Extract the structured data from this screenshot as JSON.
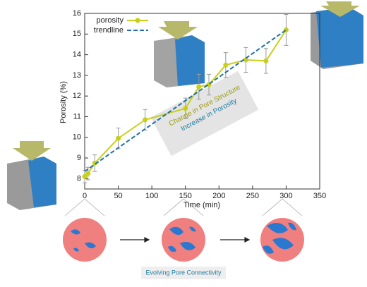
{
  "chart_data": {
    "type": "line",
    "x_label": "Time (min)",
    "y_label": "Porosity (%)",
    "xlim": [
      0,
      350
    ],
    "xticks": [
      0,
      50,
      100,
      150,
      200,
      250,
      300,
      350
    ],
    "ylim": [
      7.5,
      16
    ],
    "yticks": [
      8,
      9,
      10,
      11,
      12,
      13,
      14,
      15,
      16
    ],
    "legend": "top-left",
    "series": [
      {
        "name": "porosity",
        "color": "#c8cf1a",
        "style": "solid-markers",
        "x": [
          0,
          5,
          15,
          50,
          90,
          150,
          170,
          185,
          210,
          240,
          270,
          300
        ],
        "values": [
          8.1,
          8.25,
          8.75,
          9.95,
          10.85,
          11.4,
          12.45,
          12.55,
          13.5,
          13.75,
          13.7,
          15.2
        ],
        "errors": [
          0.3,
          0.3,
          0.4,
          0.5,
          0.5,
          0.5,
          0.6,
          0.5,
          0.6,
          0.6,
          0.6,
          0.75
        ]
      },
      {
        "name": "trendline",
        "color": "#1f6fa8",
        "style": "dashed",
        "x": [
          0,
          300
        ],
        "values": [
          8.35,
          15.2
        ]
      }
    ],
    "annotations": [
      "Change in Pore Structure",
      "Increase in Porosity"
    ],
    "caption": "Evolving Pore Connectivity"
  }
}
